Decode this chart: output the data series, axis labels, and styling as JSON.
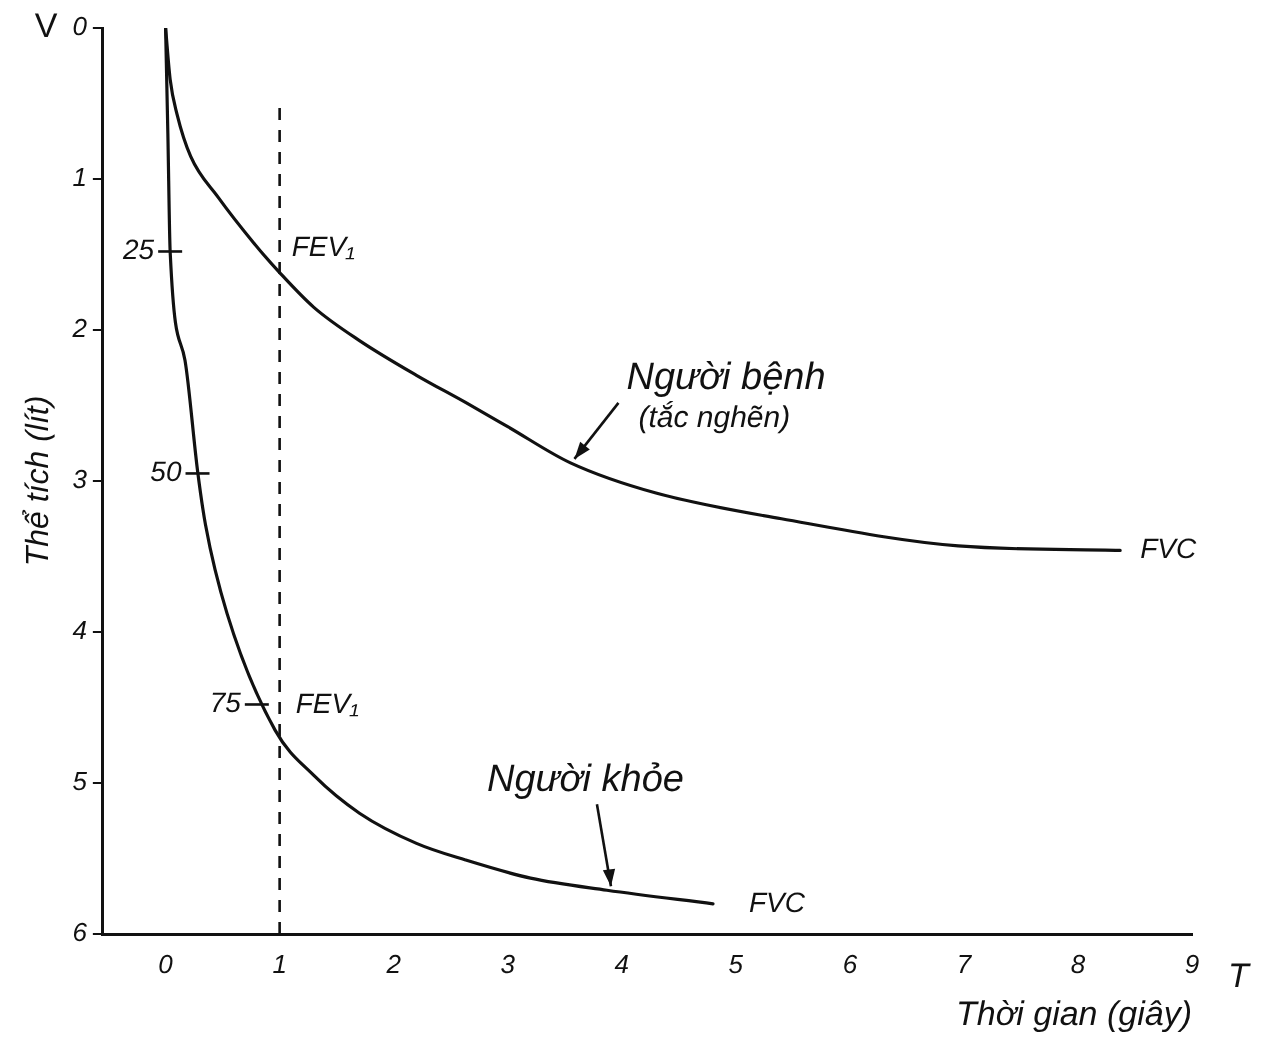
{
  "chart_data": {
    "type": "line",
    "xlabel": "Thời gian (giây)",
    "ylabel": "Thể tích (lít)",
    "xlim": [
      -0.55,
      9
    ],
    "xticks": [
      0,
      1,
      2,
      3,
      4,
      5,
      6,
      7,
      8,
      9
    ],
    "ylim": [
      6,
      0
    ],
    "yticks": [
      0,
      1,
      2,
      3,
      4,
      5,
      6
    ],
    "grid": false,
    "legend": false,
    "marker": "none",
    "line_style": "solid",
    "series": [
      {
        "color": "#111111",
        "x": [
          0,
          0.04,
          0.1,
          0.22,
          0.46,
          0.78,
          1,
          1.3,
          1.7,
          2.2,
          2.63,
          3.0,
          3.55,
          4.3,
          5.4,
          6.95,
          8.37
        ],
        "values": [
          0,
          0.34,
          0.57,
          0.85,
          1.12,
          1.43,
          1.62,
          1.85,
          2.07,
          2.3,
          2.48,
          2.64,
          2.88,
          3.08,
          3.25,
          3.43,
          3.46
        ]
      },
      {
        "color": "#111111",
        "x": [
          0,
          0.02,
          0.04,
          0.17,
          0.28,
          0.35,
          0.54,
          0.96,
          1.3,
          1.7,
          2.2,
          2.63,
          3.2,
          3.87,
          4.8
        ],
        "values": [
          0,
          0.7,
          1.48,
          2.2,
          2.93,
          3.29,
          3.88,
          4.65,
          4.95,
          5.2,
          5.4,
          5.51,
          5.63,
          5.71,
          5.8
        ]
      }
    ],
    "ref_lines": [
      {
        "axis": "x",
        "value": 1,
        "line_style": "dashed",
        "color": "#111111"
      }
    ],
    "annotations": [
      {
        "text": "FEV₁",
        "x": 1,
        "y": 1.62
      },
      {
        "text": "FEV₁",
        "x": 1,
        "y": 4.67
      },
      {
        "text": "FVC",
        "x": 8.37,
        "y": 3.46
      },
      {
        "text": "FVC",
        "x": 4.8,
        "y": 5.8
      },
      {
        "text": "25",
        "x": 0.04,
        "y": 1.48
      },
      {
        "text": "50",
        "x": 0.28,
        "y": 2.95
      },
      {
        "text": "75",
        "x": 0.8,
        "y": 4.48
      },
      {
        "text": "Người bệnh",
        "x": 3.55,
        "y": 2.88
      },
      "(tắc nghẽn)",
      {
        "text": "Người khỏe",
        "x": 3.87,
        "y": 5.71
      },
      "V",
      "T"
    ]
  }
}
